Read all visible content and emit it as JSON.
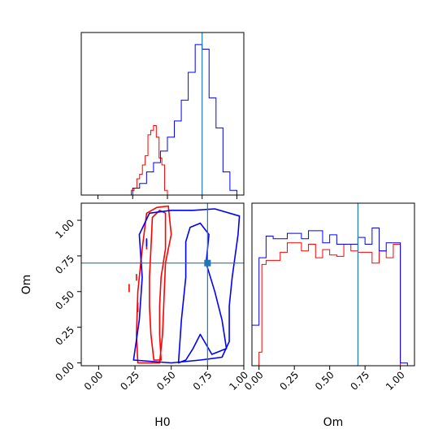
{
  "colors": {
    "series_a": "#ff0000",
    "series_b": "#0000ff",
    "truth": "#1f77b4",
    "frame": "#000000"
  },
  "chart_data": [
    {
      "type": "histogram",
      "panel": "H0 marginal (top-left)",
      "xlim": [
        -0.12,
        1.05
      ],
      "series": [
        {
          "color": "#ff0000",
          "edges": [
            0.24,
            0.26,
            0.28,
            0.3,
            0.32,
            0.34,
            0.36,
            0.38,
            0.4,
            0.42,
            0.44,
            0.46,
            0.48,
            0.5
          ],
          "counts": [
            2,
            3,
            7,
            9,
            13,
            17,
            26,
            28,
            30,
            25,
            16,
            13,
            2
          ]
        },
        {
          "color": "#0000ff",
          "edges": [
            0.18,
            0.25,
            0.3,
            0.35,
            0.4,
            0.45,
            0.5,
            0.55,
            0.6,
            0.65,
            0.7,
            0.75,
            0.8,
            0.85,
            0.9,
            0.95,
            1.0
          ],
          "counts": [
            0,
            3,
            5,
            10,
            14,
            19,
            25,
            32,
            41,
            53,
            65,
            63,
            42,
            29,
            10,
            2
          ]
        }
      ],
      "truth_x": 0.75,
      "x_ticks": [
        0.0,
        0.25,
        0.5,
        0.75,
        1.0
      ]
    },
    {
      "type": "contour",
      "panel": "H0 vs Om (bottom-left)",
      "xlabel": "H0",
      "ylabel": "Om",
      "xlim": [
        -0.12,
        1.0
      ],
      "ylim": [
        -0.02,
        1.12
      ],
      "x_ticks": [
        "0.00",
        "0.25",
        "0.50",
        "0.75",
        "1.00"
      ],
      "y_ticks": [
        "0.00",
        "0.25",
        "0.50",
        "0.75",
        "1.00"
      ],
      "truth": {
        "x": 0.75,
        "y": 0.7
      },
      "series": [
        {
          "color": "#ff0000",
          "contours": [
            [
              [
                0.38,
                0.02
              ],
              [
                0.36,
                0.2
              ],
              [
                0.35,
                0.4
              ],
              [
                0.35,
                0.6
              ],
              [
                0.36,
                0.8
              ],
              [
                0.37,
                1.02
              ],
              [
                0.42,
                1.07
              ],
              [
                0.46,
                1.05
              ],
              [
                0.46,
                0.8
              ],
              [
                0.43,
                0.6
              ],
              [
                0.42,
                0.4
              ],
              [
                0.42,
                0.2
              ],
              [
                0.43,
                0.02
              ],
              [
                0.38,
                0.02
              ]
            ],
            [
              [
                0.27,
                0.0
              ],
              [
                0.26,
                0.2
              ],
              [
                0.27,
                0.5
              ],
              [
                0.3,
                0.8
              ],
              [
                0.33,
                1.05
              ],
              [
                0.4,
                1.09
              ],
              [
                0.48,
                1.1
              ],
              [
                0.5,
                0.9
              ],
              [
                0.46,
                0.7
              ],
              [
                0.45,
                0.45
              ],
              [
                0.44,
                0.2
              ],
              [
                0.42,
                0.0
              ],
              [
                0.27,
                0.0
              ]
            ],
            [
              [
                0.33,
                0.86
              ],
              [
                0.33,
                0.8
              ]
            ],
            [
              [
                0.21,
                0.55
              ],
              [
                0.21,
                0.5
              ]
            ],
            [
              [
                0.26,
                0.62
              ],
              [
                0.26,
                0.58
              ]
            ],
            [
              [
                0.27,
                0.42
              ],
              [
                0.27,
                0.36
              ]
            ]
          ]
        },
        {
          "color": "#0000ff",
          "contours": [
            [
              [
                0.55,
                0.0
              ],
              [
                0.57,
                0.3
              ],
              [
                0.6,
                0.6
              ],
              [
                0.6,
                0.85
              ],
              [
                0.63,
                0.95
              ],
              [
                0.7,
                0.98
              ],
              [
                0.76,
                0.9
              ],
              [
                0.74,
                0.7
              ],
              [
                0.8,
                0.5
              ],
              [
                0.85,
                0.3
              ],
              [
                0.88,
                0.1
              ],
              [
                0.78,
                0.06
              ],
              [
                0.7,
                0.2
              ],
              [
                0.65,
                0.1
              ],
              [
                0.6,
                0.02
              ],
              [
                0.55,
                0.0
              ]
            ],
            [
              [
                0.24,
                0.02
              ],
              [
                0.28,
                0.3
              ],
              [
                0.3,
                0.6
              ],
              [
                0.28,
                0.9
              ],
              [
                0.35,
                1.05
              ],
              [
                0.5,
                1.07
              ],
              [
                0.65,
                1.07
              ],
              [
                0.8,
                1.08
              ],
              [
                0.97,
                1.03
              ],
              [
                0.96,
                0.9
              ],
              [
                0.92,
                0.6
              ],
              [
                0.9,
                0.4
              ],
              [
                0.9,
                0.15
              ],
              [
                0.85,
                0.04
              ],
              [
                0.7,
                0.02
              ],
              [
                0.5,
                0.0
              ],
              [
                0.24,
                0.02
              ]
            ],
            [
              [
                0.33,
                0.87
              ],
              [
                0.33,
                0.82
              ]
            ]
          ]
        }
      ]
    },
    {
      "type": "histogram",
      "panel": "Om marginal (bottom-right)",
      "xlabel": "Om",
      "xlim": [
        -0.05,
        1.1
      ],
      "x_ticks": [
        "0.00",
        "0.25",
        "0.50",
        "0.75",
        "1.00"
      ],
      "truth_x": 0.7,
      "series": [
        {
          "color": "#ff0000",
          "edges": [
            0.0,
            0.02,
            0.05,
            0.15,
            0.2,
            0.3,
            0.35,
            0.4,
            0.45,
            0.5,
            0.55,
            0.6,
            0.65,
            0.7,
            0.8,
            0.85,
            0.9,
            0.95,
            1.0,
            1.05
          ],
          "counts": [
            10,
            75,
            78,
            84,
            91,
            85,
            90,
            80,
            86,
            82,
            81,
            90,
            85,
            84,
            76,
            85,
            80,
            90,
            0
          ]
        },
        {
          "color": "#0000ff",
          "edges": [
            -0.05,
            0.0,
            0.05,
            0.1,
            0.2,
            0.3,
            0.35,
            0.45,
            0.5,
            0.55,
            0.65,
            0.7,
            0.75,
            0.8,
            0.85,
            0.9,
            1.0,
            1.05
          ],
          "counts": [
            30,
            80,
            96,
            94,
            98,
            94,
            100,
            91,
            97,
            90,
            90,
            95,
            90,
            102,
            85,
            91,
            2
          ]
        }
      ]
    }
  ]
}
